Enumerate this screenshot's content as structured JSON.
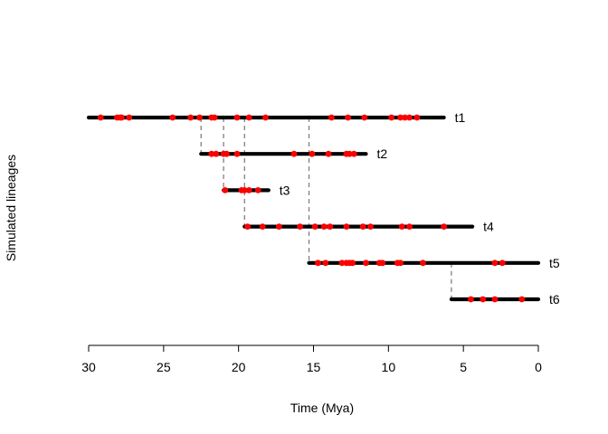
{
  "chart_data": {
    "type": "timeline",
    "title": "",
    "xlabel": "Time (Mya)",
    "ylabel": "Simulated lineages",
    "xlim": [
      30,
      0
    ],
    "x_ticks": [
      30,
      25,
      20,
      15,
      10,
      5,
      0
    ],
    "grid": false,
    "colors": {
      "lineage": "#000000",
      "point": "#ff0000",
      "connector": "#808080"
    },
    "lineages": [
      {
        "name": "t1",
        "start": 30.0,
        "end": 6.3,
        "parent": null,
        "parent_time": null,
        "points": [
          29.2,
          28.1,
          27.9,
          27.8,
          27.3,
          24.4,
          23.2,
          22.6,
          21.8,
          21.6,
          20.1,
          19.3,
          18.2,
          13.8,
          12.7,
          11.6,
          9.8,
          9.2,
          8.9,
          8.6,
          8.1
        ]
      },
      {
        "name": "t2",
        "start": 22.5,
        "end": 11.5,
        "parent": "t1",
        "parent_time": 22.5,
        "points": [
          21.8,
          21.5,
          21.0,
          20.8,
          20.1,
          16.3,
          15.1,
          14.0,
          12.8,
          12.6,
          12.3
        ]
      },
      {
        "name": "t3",
        "start": 21.0,
        "end": 18.0,
        "parent": "t1",
        "parent_time": 21.0,
        "points": [
          20.9,
          19.8,
          19.6,
          19.3,
          18.7
        ]
      },
      {
        "name": "t4",
        "start": 19.6,
        "end": 4.4,
        "parent": "t1",
        "parent_time": 19.6,
        "points": [
          19.4,
          18.4,
          17.3,
          15.9,
          14.9,
          14.3,
          13.9,
          12.8,
          11.7,
          11.2,
          9.1,
          8.6,
          6.3
        ]
      },
      {
        "name": "t5",
        "start": 15.3,
        "end": 0.0,
        "parent": "t1",
        "parent_time": 15.3,
        "points": [
          14.7,
          14.2,
          13.1,
          12.8,
          12.6,
          12.4,
          11.5,
          10.6,
          10.4,
          9.4,
          9.2,
          7.7,
          2.9,
          2.4
        ]
      },
      {
        "name": "t6",
        "start": 5.8,
        "end": 0.0,
        "parent": "t5",
        "parent_time": 5.8,
        "points": [
          4.5,
          3.7,
          2.9,
          1.1
        ]
      }
    ]
  }
}
